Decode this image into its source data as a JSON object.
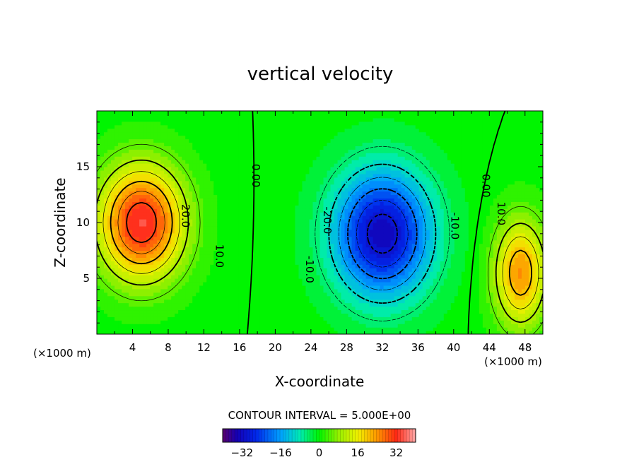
{
  "chart_data": {
    "type": "contour",
    "title": "vertical velocity",
    "xlabel": "X-coordinate",
    "ylabel": "Z-coordinate",
    "x_unit_label": "(×1000 m)",
    "z_unit_label": "(×1000 m)",
    "xlim": [
      0,
      50
    ],
    "ylim": [
      0,
      20
    ],
    "x_ticks": [
      4,
      8,
      12,
      16,
      20,
      24,
      28,
      32,
      36,
      40,
      44,
      48
    ],
    "y_ticks": [
      5,
      10,
      15
    ],
    "contour_interval_text": "CONTOUR INTERVAL = 5.000E+00",
    "colorbar": {
      "range": [
        -40,
        40
      ],
      "ticks": [
        -32,
        -16,
        0,
        16,
        32
      ]
    },
    "contour_labels": [
      {
        "text": "20.0",
        "x": 9.9,
        "z": 10.6
      },
      {
        "text": "10.0",
        "x": 13.7,
        "z": 7.0
      },
      {
        "text": "0.00",
        "x": 17.8,
        "z": 14.2
      },
      {
        "text": "-20.0",
        "x": 25.8,
        "z": 10.2
      },
      {
        "text": "-10.0",
        "x": 23.8,
        "z": 5.8
      },
      {
        "text": "-10.0",
        "x": 40.1,
        "z": 9.7
      },
      {
        "text": "0.00",
        "x": 43.6,
        "z": 13.3
      },
      {
        "text": "10.0",
        "x": 45.3,
        "z": 10.8
      }
    ],
    "cells": [
      {
        "x": 5,
        "z": 10,
        "amp": 34,
        "sx": 4.5,
        "sz": 4.8
      },
      {
        "x": 32,
        "z": 9,
        "amp": -33,
        "sx": 5.2,
        "sz": 5.4
      },
      {
        "x": 47.5,
        "z": 5.5,
        "amp": 24,
        "sx": 2.8,
        "sz": 4.5
      }
    ]
  }
}
